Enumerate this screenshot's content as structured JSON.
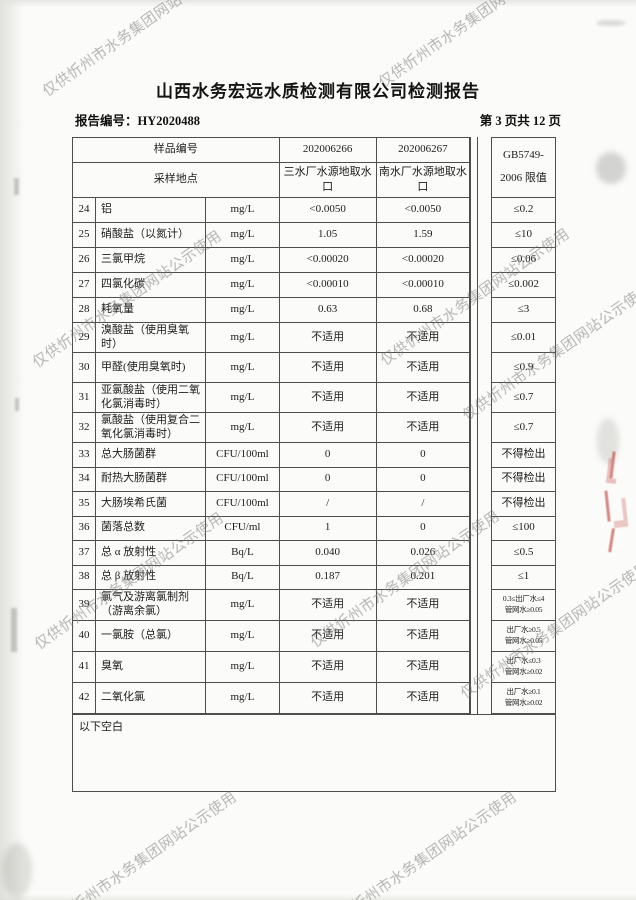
{
  "watermark_text": "仅供忻州市水务集团网站公示使用",
  "header": {
    "title": "山西水务宏远水质检测有限公司检测报告",
    "report_no": "报告编号：HY2020488",
    "page_info": "第 3 页共 12 页"
  },
  "table": {
    "header": {
      "sample_label": "样品编号",
      "sample_ids": [
        "202006266",
        "202006267"
      ],
      "location_label": "采样地点",
      "locations": [
        "三水厂水源地取水口",
        "南水厂水源地取水口"
      ],
      "limit_title_line1": "GB5749-",
      "limit_title_line2": "2006 限值"
    },
    "rows": [
      {
        "no": "24",
        "name": "铝",
        "unit": "mg/L",
        "v1": "<0.0050",
        "v2": "<0.0050",
        "limit": "≤0.2"
      },
      {
        "no": "25",
        "name": "硝酸盐（以氮计）",
        "unit": "mg/L",
        "v1": "1.05",
        "v2": "1.59",
        "limit": "≤10"
      },
      {
        "no": "26",
        "name": "三氯甲烷",
        "unit": "mg/L",
        "v1": "<0.00020",
        "v2": "<0.00020",
        "limit": "≤0.06"
      },
      {
        "no": "27",
        "name": "四氯化碳",
        "unit": "mg/L",
        "v1": "<0.00010",
        "v2": "<0.00010",
        "limit": "≤0.002"
      },
      {
        "no": "28",
        "name": "耗氧量",
        "unit": "mg/L",
        "v1": "0.63",
        "v2": "0.68",
        "limit": "≤3"
      },
      {
        "no": "29",
        "name": "溴酸盐（使用臭氧时）",
        "unit": "mg/L",
        "v1": "不适用",
        "v2": "不适用",
        "limit": "≤0.01"
      },
      {
        "no": "30",
        "name": "甲醛(使用臭氧时)",
        "unit": "mg/L",
        "v1": "不适用",
        "v2": "不适用",
        "limit": "≤0.9"
      },
      {
        "no": "31",
        "name": "亚氯酸盐（使用二氧化氯消毒时）",
        "unit": "mg/L",
        "v1": "不适用",
        "v2": "不适用",
        "limit": "≤0.7"
      },
      {
        "no": "32",
        "name": "氯酸盐（使用复合二氧化氯消毒时）",
        "unit": "mg/L",
        "v1": "不适用",
        "v2": "不适用",
        "limit": "≤0.7"
      },
      {
        "no": "33",
        "name": "总大肠菌群",
        "unit": "CFU/100ml",
        "v1": "0",
        "v2": "0",
        "limit": "不得检出"
      },
      {
        "no": "34",
        "name": "耐热大肠菌群",
        "unit": "CFU/100ml",
        "v1": "0",
        "v2": "0",
        "limit": "不得检出"
      },
      {
        "no": "35",
        "name": "大肠埃希氏菌",
        "unit": "CFU/100ml",
        "v1": "/",
        "v2": "/",
        "limit": "不得检出"
      },
      {
        "no": "36",
        "name": "菌落总数",
        "unit": "CFU/ml",
        "v1": "1",
        "v2": "0",
        "limit": "≤100"
      },
      {
        "no": "37",
        "name": "总 α 放射性",
        "unit": "Bq/L",
        "v1": "0.040",
        "v2": "0.026",
        "limit": "≤0.5"
      },
      {
        "no": "38",
        "name": "总 β 放射性",
        "unit": "Bq/L",
        "v1": "0.187",
        "v2": "0.201",
        "limit": "≤1"
      },
      {
        "no": "39",
        "name": "氯气及游离氯制剂（游离余氯）",
        "unit": "mg/L",
        "v1": "不适用",
        "v2": "不适用",
        "limit": "0.3≤出厂水≤4",
        "limit2": "管网水≥0.05"
      },
      {
        "no": "40",
        "name": "一氯胺（总氯）",
        "unit": "mg/L",
        "v1": "不适用",
        "v2": "不适用",
        "limit": "出厂水≥0.5",
        "limit2": "管网水≥0.05"
      },
      {
        "no": "41",
        "name": "臭氧",
        "unit": "mg/L",
        "v1": "不适用",
        "v2": "不适用",
        "limit": "出厂水≤0.3",
        "limit2": "管网水≥0.02"
      },
      {
        "no": "42",
        "name": "二氧化氯",
        "unit": "mg/L",
        "v1": "不适用",
        "v2": "不适用",
        "limit": "出厂水≥0.1",
        "limit2": "管网水≥0.02"
      }
    ],
    "footer_note": "以下空白"
  }
}
